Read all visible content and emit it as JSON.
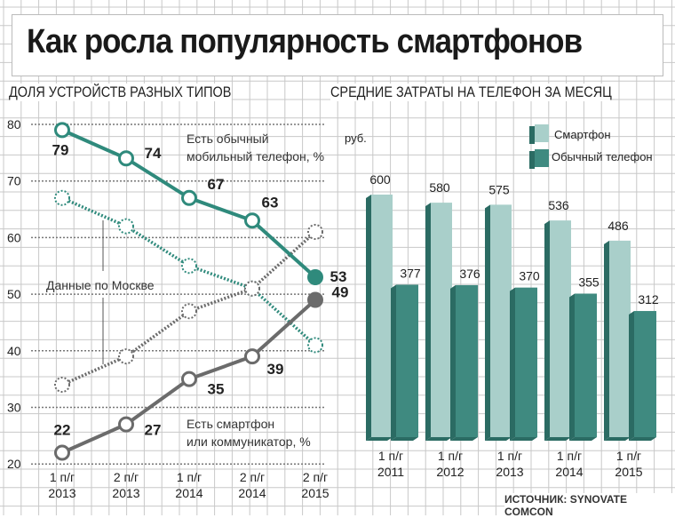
{
  "title": "Как росла популярность смартфонов",
  "source": "ИСТОЧНИК: SYNOVATE COMCON",
  "colors": {
    "teal": "#2f8a7c",
    "gray": "#6b6b6b",
    "bar_light": "#a9cfca",
    "bar_dark": "#3f8a80",
    "bar_side": "#2b6b63"
  },
  "chart_data": [
    {
      "type": "line",
      "title": "ДОЛЯ УСТРОЙСТВ РАЗНЫХ ТИПОВ",
      "categories": [
        "1 п/г 2013",
        "2 п/г 2013",
        "1 п/г 2014",
        "2 п/г 2014",
        "2 п/г 2015"
      ],
      "yticks": [
        20,
        30,
        40,
        50,
        60,
        70,
        80
      ],
      "ylim": [
        20,
        80
      ],
      "series": [
        {
          "name": "Есть обычный мобильный телефон, %",
          "values": [
            79,
            74,
            67,
            63,
            53
          ],
          "style": "solid",
          "color": "#2f8a7c"
        },
        {
          "name": "Есть смартфон или коммуникатор, %",
          "values": [
            22,
            27,
            35,
            39,
            49
          ],
          "style": "solid",
          "color": "#6b6b6b"
        },
        {
          "name": "Данные по Москве (обычный телефон)",
          "values": [
            67,
            62,
            55,
            51,
            41
          ],
          "style": "dotted",
          "color": "#2f8a7c"
        },
        {
          "name": "Данные по Москве (смартфон)",
          "values": [
            34,
            39,
            47,
            51,
            61
          ],
          "style": "dotted",
          "color": "#6b6b6b"
        }
      ],
      "labels": {
        "ordinary": [
          "Есть обычный",
          "мобильный телефон, %"
        ],
        "smart": [
          "Есть смартфон",
          "или коммуникатор, %"
        ],
        "moscow": "Данные по Москве"
      }
    },
    {
      "type": "bar",
      "title": "СРЕДНИЕ ЗАТРАТЫ НА ТЕЛЕФОН ЗА МЕСЯЦ",
      "ylabel": "руб.",
      "categories": [
        "1 п/г 2011",
        "1 п/г 2012",
        "1 п/г 2013",
        "1 п/г 2014",
        "1 п/г 2015"
      ],
      "series": [
        {
          "name": "Смартфон",
          "values": [
            600,
            580,
            575,
            536,
            486
          ]
        },
        {
          "name": "Обычный телефон",
          "values": [
            377,
            376,
            370,
            355,
            312
          ]
        }
      ]
    }
  ]
}
